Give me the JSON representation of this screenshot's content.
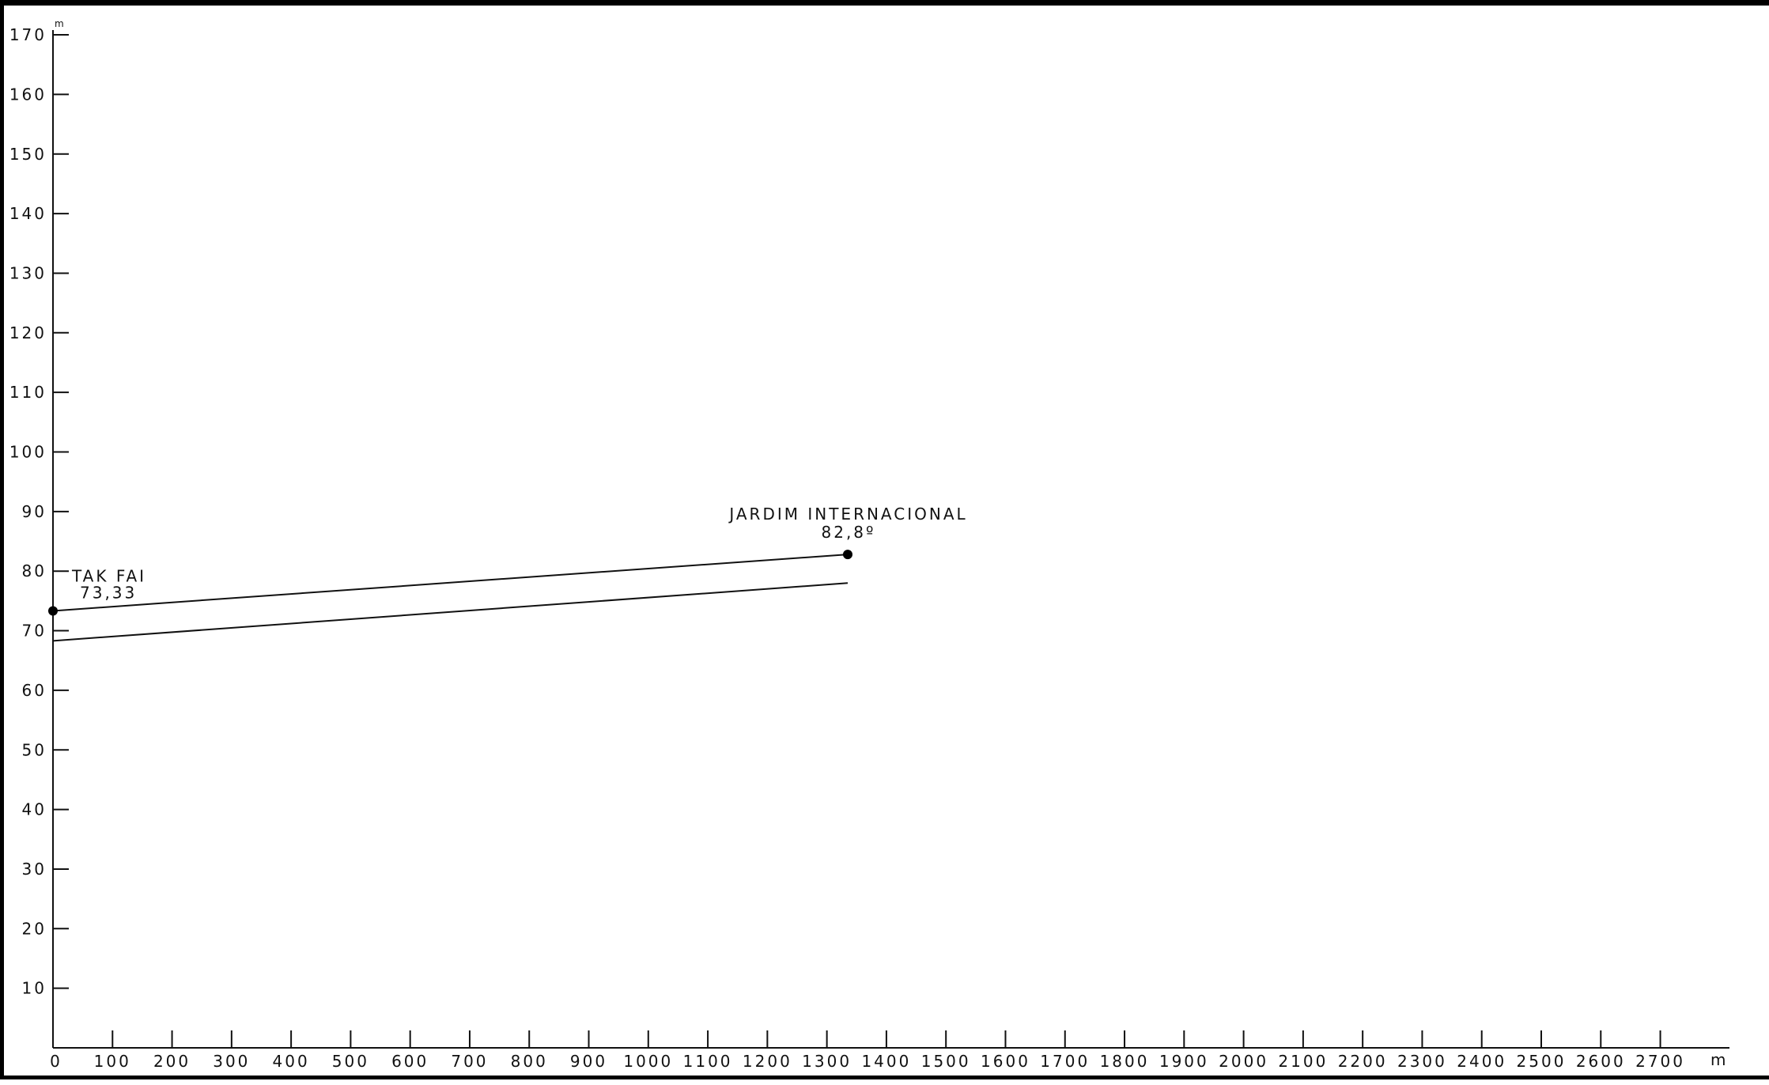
{
  "chart_data": {
    "type": "line",
    "title": "",
    "xlabel": "",
    "ylabel": "",
    "x_unit": "m",
    "y_unit": "m",
    "xlim": [
      0,
      2800
    ],
    "ylim": [
      0,
      170
    ],
    "x_ticks": [
      0,
      100,
      200,
      300,
      400,
      500,
      600,
      700,
      800,
      900,
      1000,
      1100,
      1200,
      1300,
      1400,
      1500,
      1600,
      1700,
      1800,
      1900,
      2000,
      2100,
      2200,
      2300,
      2400,
      2500,
      2600,
      2700
    ],
    "y_ticks": [
      10,
      20,
      30,
      40,
      50,
      60,
      70,
      80,
      90,
      100,
      110,
      120,
      130,
      140,
      150,
      160,
      170
    ],
    "grid": false,
    "legend": "none",
    "series": [
      {
        "points": [
          {
            "x": 0,
            "y": 73.33
          },
          {
            "x": 1335,
            "y": 82.8
          }
        ],
        "markers": true
      },
      {
        "points": [
          {
            "x": 0,
            "y": 68.3
          },
          {
            "x": 1335,
            "y": 78.0
          }
        ],
        "markers": false
      }
    ],
    "annotations": [
      {
        "name": "TAK FAI",
        "value": "73,33",
        "x": 0,
        "y": 73.33
      },
      {
        "name": "JARDIM INTERNACIONAL",
        "value": "82,8º",
        "x": 1335,
        "y": 82.8
      }
    ]
  }
}
